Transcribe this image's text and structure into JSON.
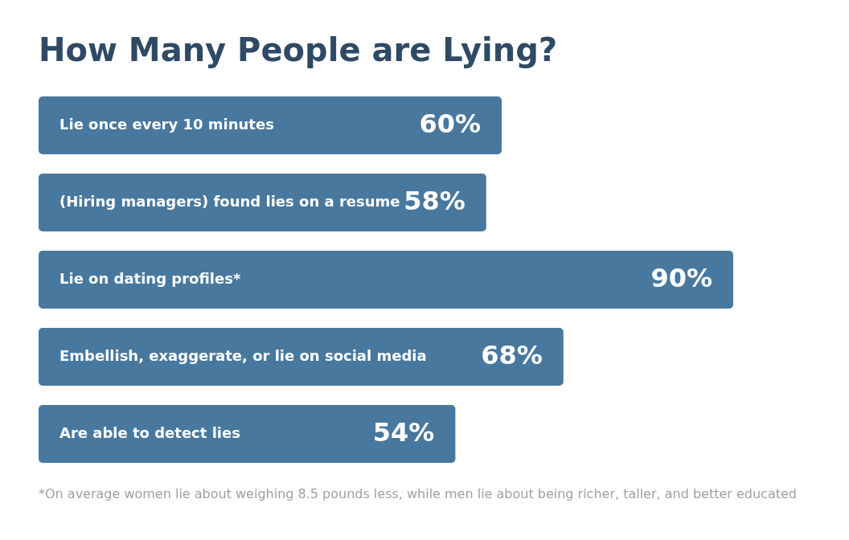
{
  "chart_data": {
    "type": "bar",
    "orientation": "horizontal",
    "title": "How Many People are Lying?",
    "categories": [
      "Lie once every 10 minutes",
      "(Hiring managers) found lies on a resume",
      "Lie on dating profiles*",
      "Embellish, exaggerate, or lie on social media",
      "Are able to detect lies"
    ],
    "values": [
      60,
      58,
      90,
      68,
      54
    ],
    "value_labels": [
      "60%",
      "58%",
      "90%",
      "68%",
      "54%"
    ],
    "color": "#48789e",
    "annotations": [
      "*On average women lie about weighing 8.5 pounds less, while men lie about being richer, taller, and better educated"
    ]
  }
}
